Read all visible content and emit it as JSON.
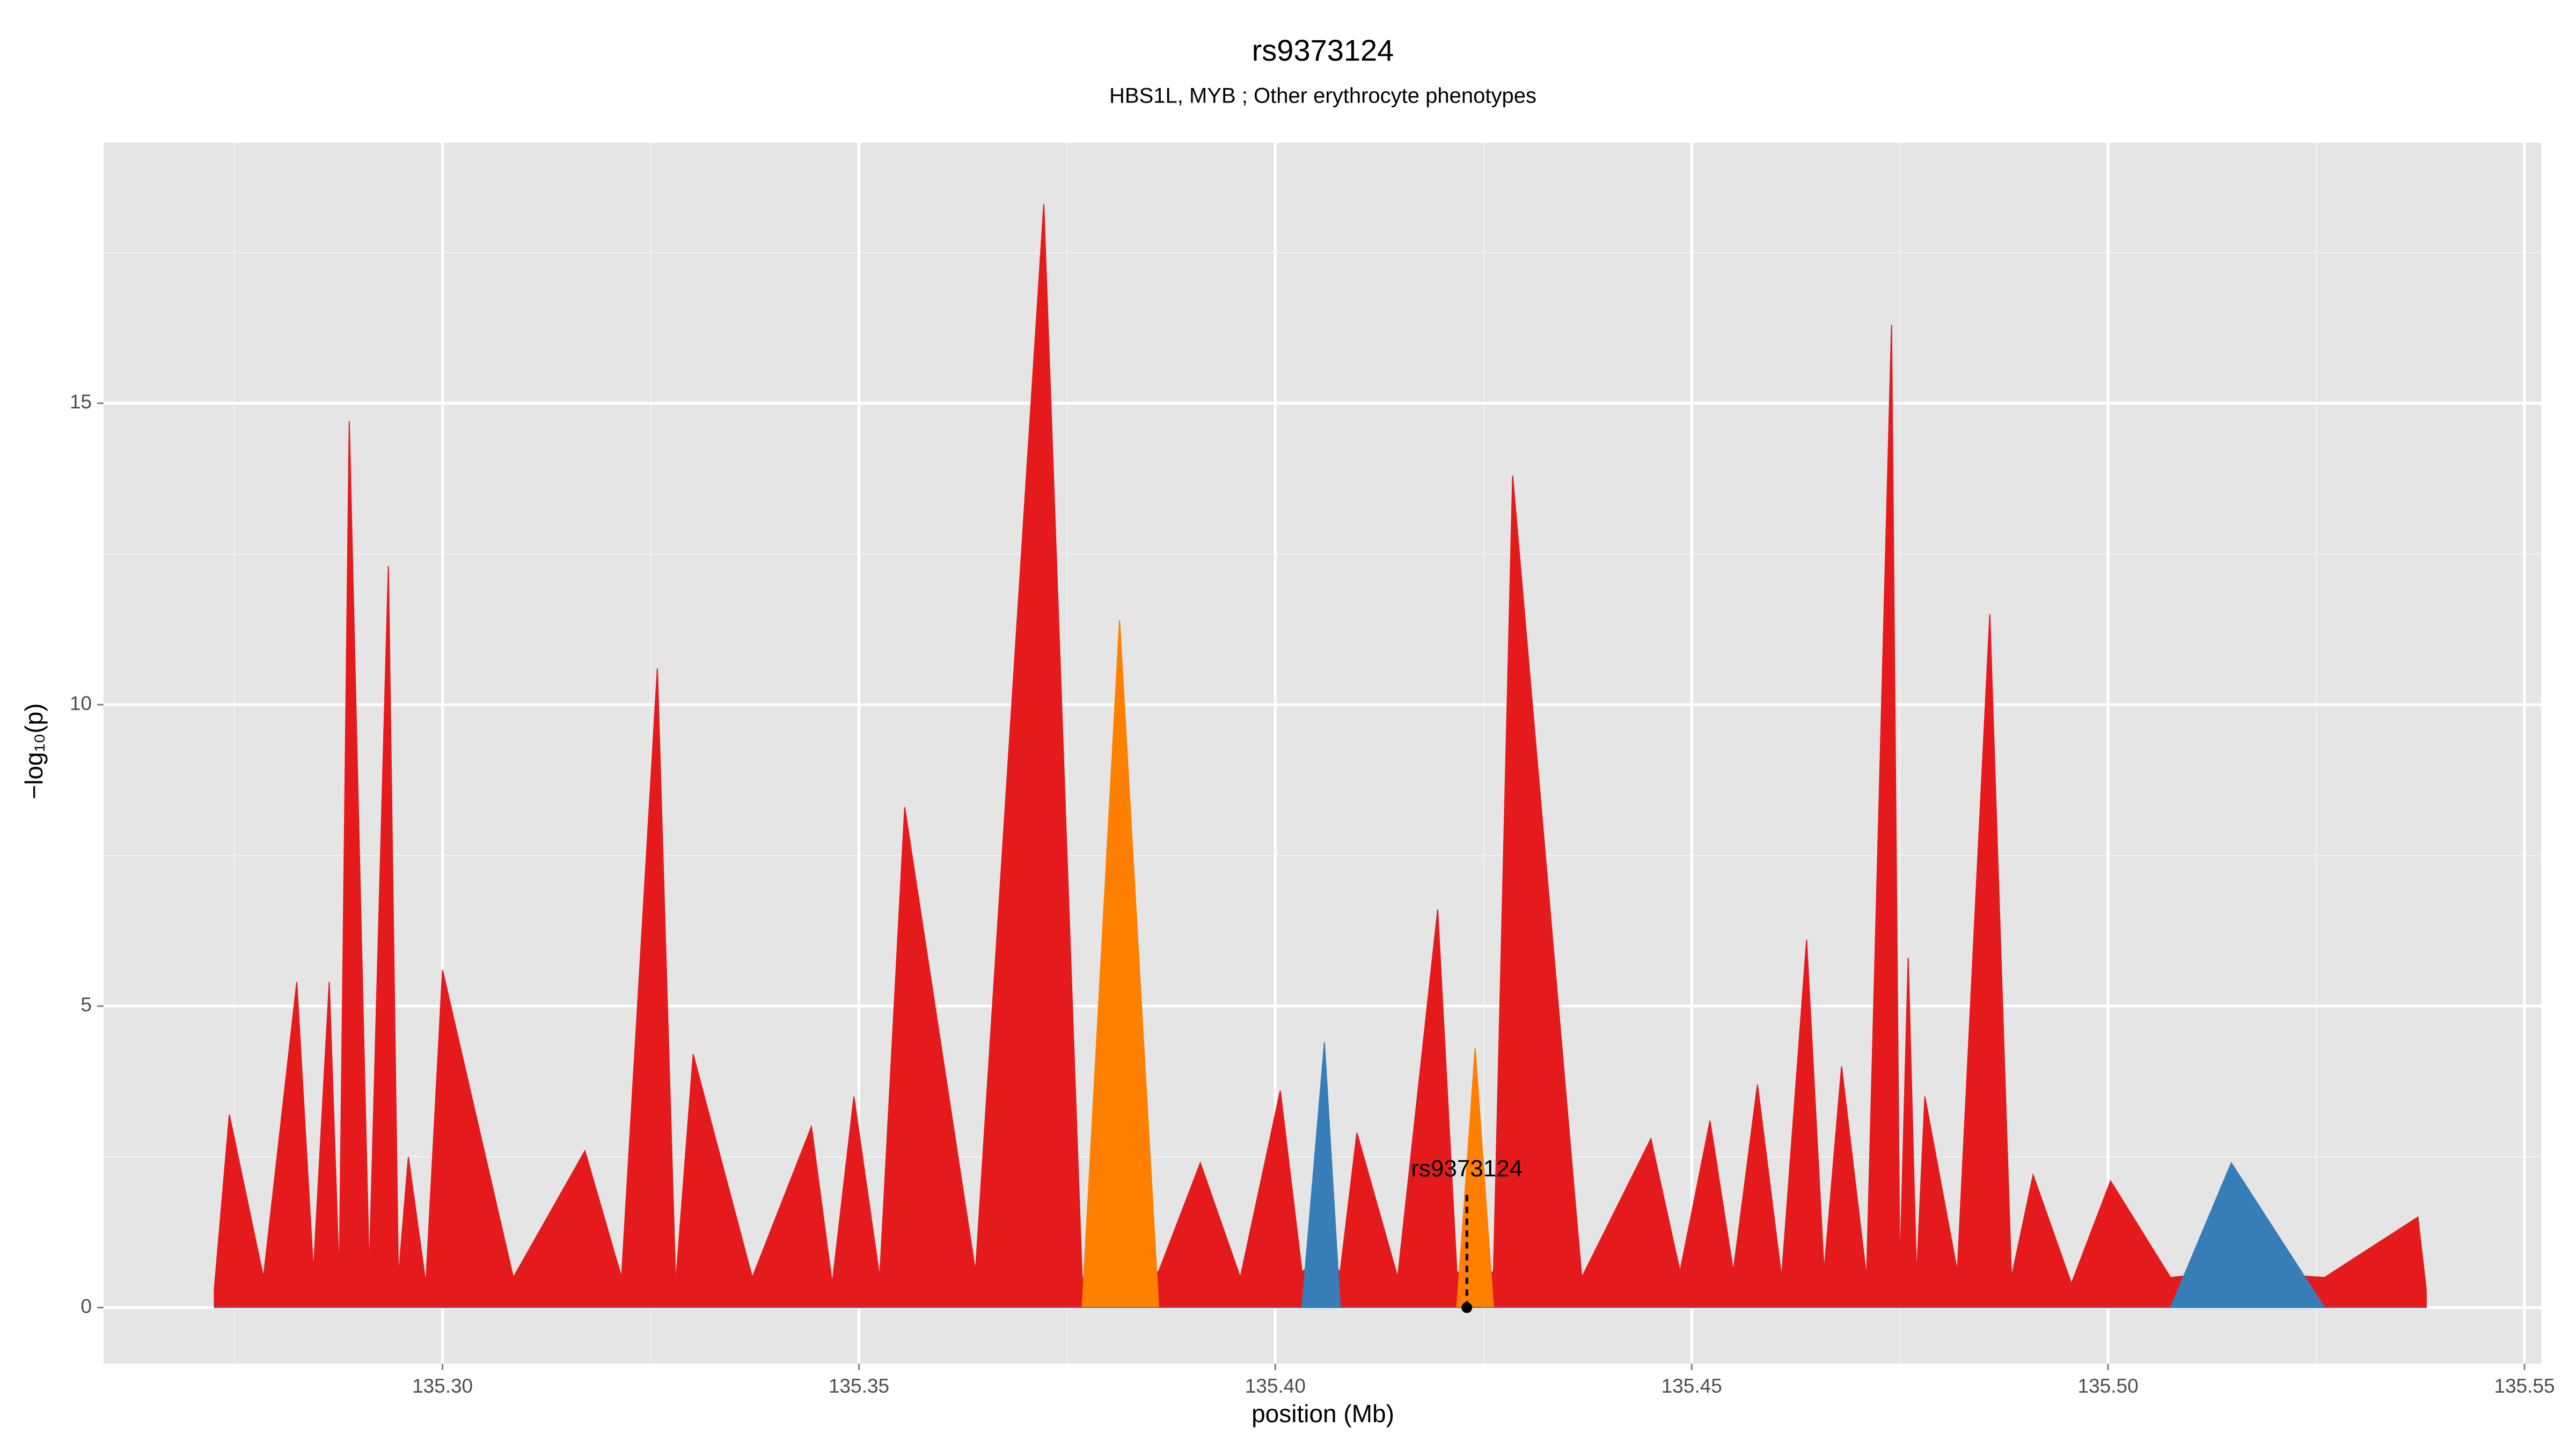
{
  "chart_data": {
    "type": "area",
    "title": "rs9373124",
    "subtitle": "HBS1L, MYB ; Other erythrocyte phenotypes",
    "x_label": "position (Mb)",
    "y_label": "−log₁₀(p)",
    "x": [
      135.2726,
      135.2744,
      135.2785,
      135.2825,
      135.2845,
      135.2864,
      135.2876,
      135.2888,
      135.2912,
      135.2935,
      135.2947,
      135.2959,
      135.298,
      135.3,
      135.3085,
      135.3171,
      135.3215,
      135.3258,
      135.328,
      135.3301,
      135.3372,
      135.3443,
      135.3468,
      135.3494,
      135.3525,
      135.3555,
      135.364,
      135.3722,
      135.3768,
      135.3813,
      135.386,
      135.391,
      135.3958,
      135.4006,
      135.4032,
      135.4059,
      135.4078,
      135.4098,
      135.4147,
      135.4195,
      135.4218,
      135.424,
      135.4262,
      135.4285,
      135.4368,
      135.4451,
      135.4486,
      135.4522,
      135.455,
      135.4579,
      135.4608,
      135.4638,
      135.4659,
      135.468,
      135.471,
      135.474,
      135.475,
      135.476,
      135.477,
      135.478,
      135.4819,
      135.4858,
      135.4884,
      135.491,
      135.4956,
      135.5003,
      135.5075,
      135.5148,
      135.526,
      135.5372,
      135.5382
    ],
    "series": [
      {
        "color": "#e41a1c",
        "values": [
          0.3,
          3.2,
          0.5,
          5.4,
          0.6,
          5.4,
          0.5,
          14.7,
          0.6,
          12.3,
          0.5,
          2.5,
          0.4,
          5.6,
          0.5,
          2.6,
          0.5,
          10.6,
          0.4,
          4.2,
          0.5,
          3.0,
          0.4,
          3.5,
          0.5,
          8.3,
          0.6,
          18.3,
          0.5,
          0.3,
          0.6,
          2.4,
          0.5,
          3.6,
          0.6,
          0.8,
          0.6,
          2.9,
          0.5,
          6.6,
          0.6,
          0.4,
          0.6,
          13.8,
          0.5,
          2.8,
          0.6,
          3.1,
          0.6,
          3.7,
          0.5,
          6.1,
          0.6,
          4.0,
          0.5,
          16.3,
          0.6,
          5.8,
          0.5,
          3.5,
          0.6,
          11.5,
          0.5,
          2.2,
          0.4,
          2.1,
          0.5,
          0.6,
          0.5,
          1.5,
          0.3
        ]
      },
      {
        "color": "#ff7f00",
        "values": [
          0,
          0,
          0,
          0,
          0,
          0,
          0,
          0,
          0,
          0,
          0,
          0,
          0,
          0,
          0,
          0,
          0,
          0,
          0,
          0,
          0,
          0,
          0,
          0,
          0,
          0,
          0,
          0,
          0,
          11.4,
          0,
          0,
          0,
          0,
          0,
          0,
          0,
          0,
          0,
          0,
          0,
          4.3,
          0,
          0,
          0,
          0,
          0,
          0,
          0,
          0,
          0,
          0,
          0,
          0,
          0,
          0,
          0,
          0,
          0,
          0,
          0,
          0,
          0,
          0,
          0,
          0,
          0,
          0,
          0,
          0,
          0
        ]
      },
      {
        "color": "#377eb8",
        "values": [
          0,
          0,
          0,
          0,
          0,
          0,
          0,
          0,
          0,
          0,
          0,
          0,
          0,
          0,
          0,
          0,
          0,
          0,
          0,
          0,
          0,
          0,
          0,
          0,
          0,
          0,
          0,
          0,
          0,
          0,
          0,
          0,
          0,
          0,
          0,
          4.4,
          0,
          0,
          0,
          0,
          0,
          0,
          0,
          0,
          0,
          0,
          0,
          0,
          0,
          0,
          0,
          0,
          0,
          0,
          0,
          0,
          0,
          0,
          0,
          0,
          0,
          0,
          0,
          0,
          0,
          0,
          0,
          2.4,
          0,
          0,
          0
        ]
      }
    ],
    "annotation": {
      "text": "rs9373124",
      "x": 135.423,
      "y": 0
    },
    "xlim": [
      135.2593,
      135.552
    ],
    "ylim": [
      -0.93,
      19.32
    ],
    "xticks": [
      {
        "value": 135.3,
        "label": "135.30"
      },
      {
        "value": 135.35,
        "label": "135.35"
      },
      {
        "value": 135.4,
        "label": "135.40"
      },
      {
        "value": 135.45,
        "label": "135.45"
      },
      {
        "value": 135.5,
        "label": "135.50"
      },
      {
        "value": 135.55,
        "label": "135.55"
      }
    ],
    "yticks": [
      0,
      5,
      10,
      15
    ],
    "x_minor_ticks": [
      135.275,
      135.325,
      135.375,
      135.425,
      135.475,
      135.525
    ],
    "y_minor_ticks": [
      2.5,
      7.5,
      12.5,
      17.5
    ],
    "grid": true
  }
}
